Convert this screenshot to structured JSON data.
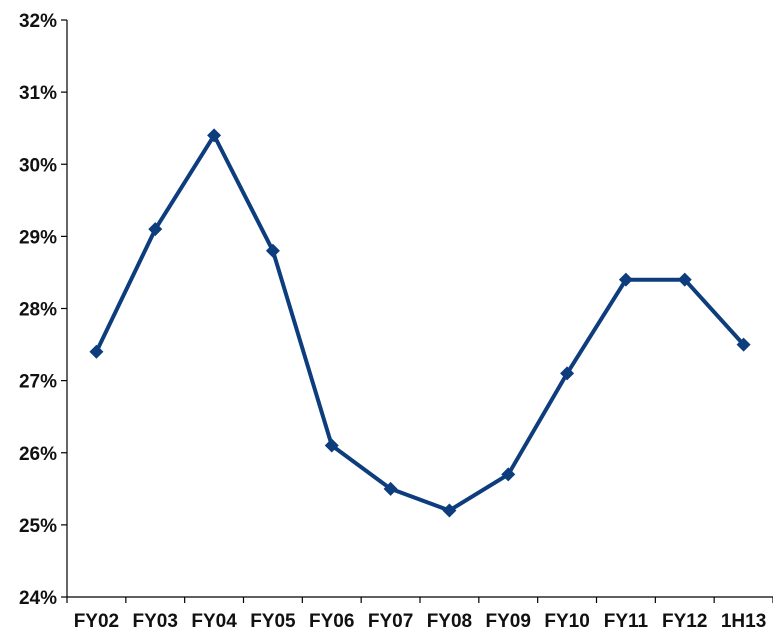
{
  "chart_data": {
    "type": "line",
    "title": "",
    "xlabel": "",
    "ylabel": "",
    "categories": [
      "FY02",
      "FY03",
      "FY04",
      "FY05",
      "FY06",
      "FY07",
      "FY08",
      "FY09",
      "FY10",
      "FY11",
      "FY12",
      "1H13"
    ],
    "series": [
      {
        "values": [
          27.4,
          29.1,
          30.4,
          28.8,
          26.1,
          25.5,
          25.2,
          25.7,
          27.1,
          28.4,
          28.4,
          27.5
        ]
      }
    ],
    "ylim": [
      24,
      32
    ],
    "yticks": [
      24,
      25,
      26,
      27,
      28,
      29,
      30,
      31,
      32
    ],
    "ytick_labels": [
      "24%",
      "25%",
      "26%",
      "27%",
      "28%",
      "29%",
      "30%",
      "31%",
      "32%"
    ],
    "grid": false,
    "legend": "none",
    "colors": {
      "series": "#0d3d7d",
      "axis": "#000000",
      "text": "#111111"
    }
  }
}
